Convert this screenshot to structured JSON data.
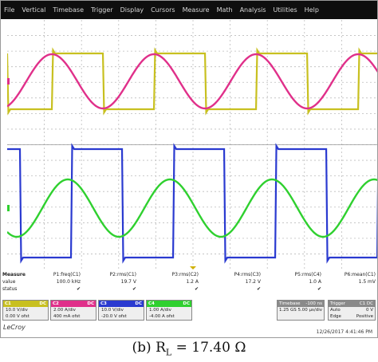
{
  "menu": [
    "File",
    "Vertical",
    "Timebase",
    "Trigger",
    "Display",
    "Cursors",
    "Measure",
    "Math",
    "Analysis",
    "Utilities",
    "Help"
  ],
  "measurements": {
    "label_measure": "Measure",
    "label_value": "value",
    "label_status": "status",
    "columns": [
      {
        "name": "P1:freq(C1)",
        "value": "100.0 kHz",
        "status": "✔"
      },
      {
        "name": "P2:rms(C1)",
        "value": "19.7 V",
        "status": "✔"
      },
      {
        "name": "P3:rms(C2)",
        "value": "1.2 A",
        "status": "✔"
      },
      {
        "name": "P4:rms(C3)",
        "value": "17.2 V",
        "status": "✔"
      },
      {
        "name": "P5:rms(C4)",
        "value": "1.0 A",
        "status": "✔"
      },
      {
        "name": "P6:mean(C1)",
        "value": "1.5 mV",
        "status": ""
      }
    ]
  },
  "channels": [
    {
      "name": "C1",
      "tag": "DC",
      "color": "#c8c020",
      "line1": "10.0 V/div",
      "line2": "0.00 V ofst"
    },
    {
      "name": "C2",
      "tag": "DC",
      "color": "#e0308a",
      "line1": "2.00 A/div",
      "line2": "400 mA ofst"
    },
    {
      "name": "C3",
      "tag": "DC",
      "color": "#2a3ad0",
      "line1": "10.0 V/div",
      "line2": "-20.0 V ofst"
    },
    {
      "name": "C4",
      "tag": "DC",
      "color": "#2fd02f",
      "line1": "1.00 A/div",
      "line2": "-4.00 A ofst"
    }
  ],
  "timebase": {
    "label": "Timebase",
    "value": "-100 ns",
    "line2a": "1.25 GS",
    "line2b": "5.00 µs/div"
  },
  "trigger": {
    "label": "Trigger",
    "value": "C1 DC",
    "line1a": "Auto",
    "line1b": "0 V",
    "line2a": "Edge",
    "line2b": "Positive"
  },
  "brand": "LeCroy",
  "timestamp": "12/26/2017 4:41:46 PM",
  "caption": {
    "prefix": "(b) R",
    "sub": "L",
    "suffix": " = 17.40 Ω"
  },
  "colors": {
    "c1": "#c8c020",
    "c2": "#e0308a",
    "c3": "#2a3ad0",
    "c4": "#2fd02f",
    "grid": "#bcbcbc"
  }
}
